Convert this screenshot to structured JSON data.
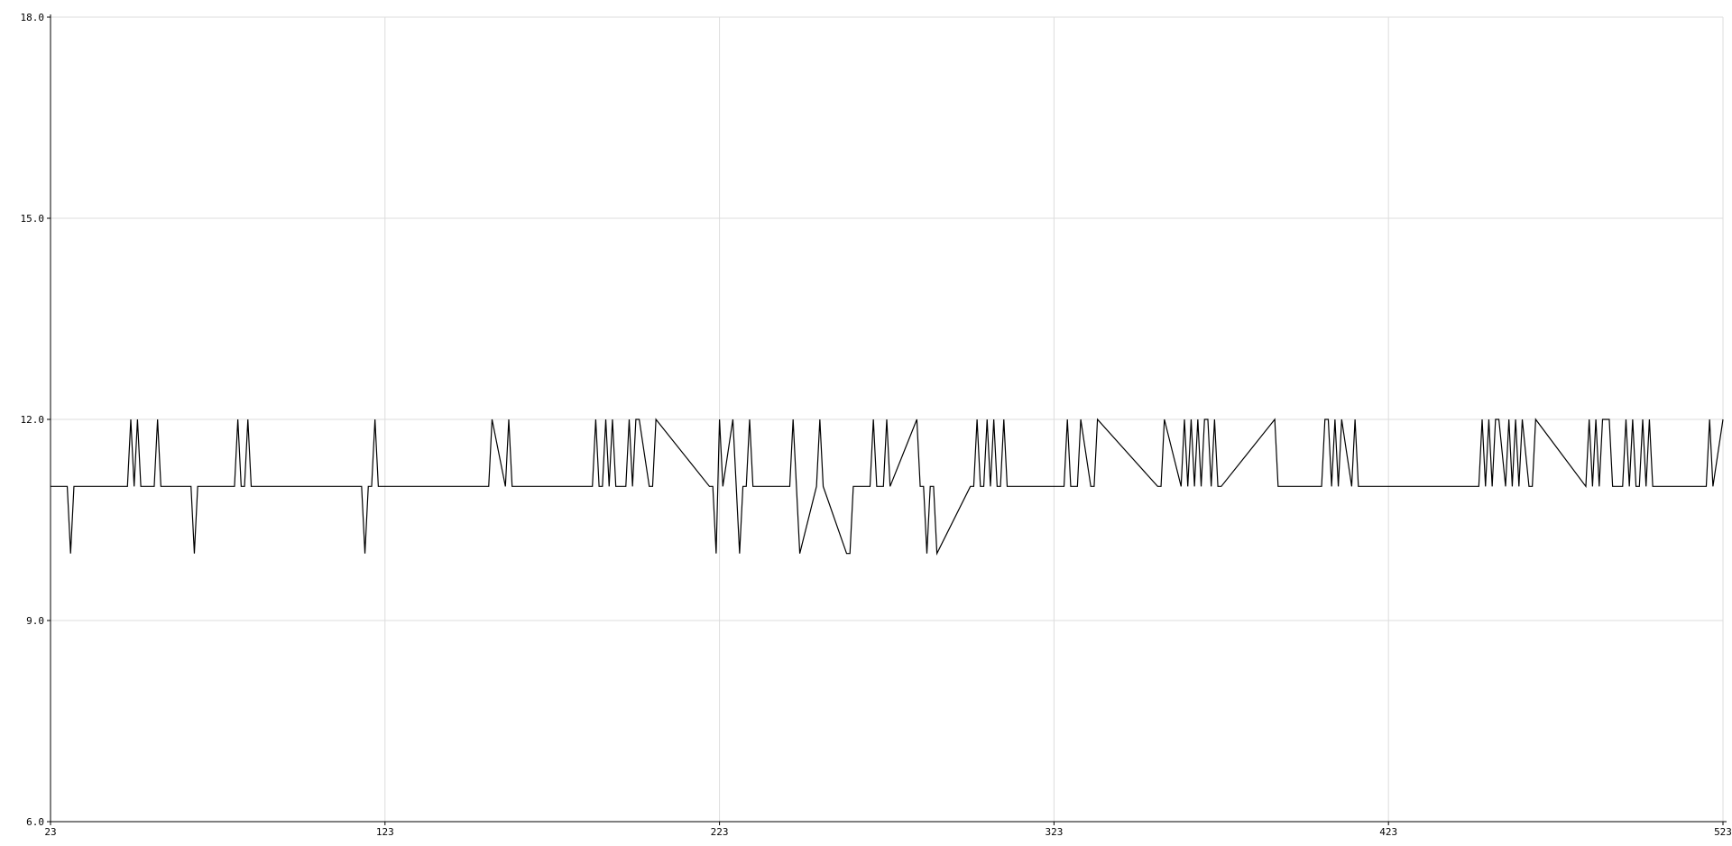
{
  "chart_data": {
    "type": "line",
    "title": "",
    "xlabel": "",
    "ylabel": "",
    "xlim": [
      23,
      523
    ],
    "ylim": [
      6.0,
      18.0
    ],
    "grid": true,
    "x_ticks": [
      23,
      123,
      223,
      323,
      423,
      523
    ],
    "x_tick_labels": [
      "23",
      "123",
      "223",
      "323",
      "423",
      "523"
    ],
    "y_ticks": [
      6.0,
      9.0,
      12.0,
      15.0,
      18.0
    ],
    "y_tick_labels": [
      "6.0",
      "9.0",
      "12.0",
      "15.0",
      "18.0"
    ],
    "series": [
      {
        "x": [
          23,
          28,
          29,
          30,
          31,
          46,
          47,
          48,
          49,
          50,
          51,
          54,
          55,
          56,
          65,
          66,
          67,
          78,
          79,
          80,
          81,
          82,
          83,
          84,
          116,
          117,
          118,
          119,
          120,
          121,
          154,
          155,
          159,
          160,
          161,
          185,
          186,
          187,
          188,
          189,
          190,
          191,
          192,
          195,
          196,
          197,
          198,
          199,
          202,
          203,
          204,
          220,
          221,
          222,
          223,
          224,
          227,
          228,
          229,
          230,
          231,
          232,
          233,
          244,
          245,
          246,
          247,
          252,
          253,
          254,
          261,
          262,
          263,
          268,
          269,
          270,
          272,
          273,
          274,
          282,
          283,
          284,
          285,
          286,
          287,
          288,
          298,
          299,
          300,
          301,
          302,
          303,
          304,
          305,
          306,
          307,
          308,
          309,
          326,
          327,
          328,
          330,
          331,
          334,
          335,
          336,
          354,
          355,
          356,
          361,
          362,
          363,
          364,
          365,
          366,
          367,
          368,
          369,
          370,
          371,
          372,
          373,
          389,
          390,
          403,
          404,
          405,
          406,
          407,
          408,
          409,
          412,
          413,
          414,
          450,
          451,
          452,
          453,
          454,
          455,
          456,
          458,
          459,
          460,
          461,
          462,
          463,
          465,
          466,
          467,
          482,
          483,
          484,
          485,
          486,
          487,
          488,
          489,
          490,
          493,
          494,
          495,
          496,
          497,
          498,
          499,
          500,
          500,
          501,
          502,
          503,
          518,
          519,
          520,
          523
        ],
        "y": [
          11,
          11,
          10,
          11,
          11,
          11,
          12,
          11,
          12,
          11,
          11,
          11,
          12,
          11,
          11,
          10,
          11,
          11,
          12,
          11,
          11,
          12,
          11,
          11,
          11,
          10,
          11,
          11,
          12,
          11,
          11,
          12,
          11,
          12,
          11,
          11,
          12,
          11,
          11,
          12,
          11,
          12,
          11,
          11,
          12,
          11,
          12,
          12,
          11,
          11,
          12,
          11,
          11,
          10,
          12,
          11,
          12,
          11,
          10,
          11,
          11,
          12,
          11,
          11,
          12,
          11,
          10,
          11,
          12,
          11,
          10,
          10,
          11,
          11,
          12,
          11,
          11,
          12,
          11,
          12,
          11,
          11,
          10,
          11,
          11,
          10,
          11,
          11,
          12,
          11,
          11,
          12,
          11,
          12,
          11,
          11,
          12,
          11,
          11,
          12,
          11,
          11,
          12,
          11,
          11,
          12,
          11,
          11,
          12,
          11,
          12,
          11,
          12,
          11,
          12,
          11,
          12,
          12,
          11,
          12,
          11,
          11,
          12,
          11,
          11,
          12,
          12,
          11,
          12,
          11,
          12,
          11,
          12,
          11,
          11,
          12,
          11,
          12,
          11,
          12,
          12,
          11,
          12,
          11,
          12,
          11,
          12,
          11,
          11,
          12,
          11,
          12,
          11,
          12,
          11,
          12,
          12,
          12,
          11,
          11,
          12,
          11,
          12,
          11,
          11,
          12,
          11,
          11,
          12,
          11,
          11,
          11,
          12,
          11,
          12
        ],
        "color": "#000000"
      }
    ],
    "colors": {
      "background": "#ffffff",
      "grid": "#dddddd",
      "axis": "#000000",
      "line": "#000000"
    }
  }
}
